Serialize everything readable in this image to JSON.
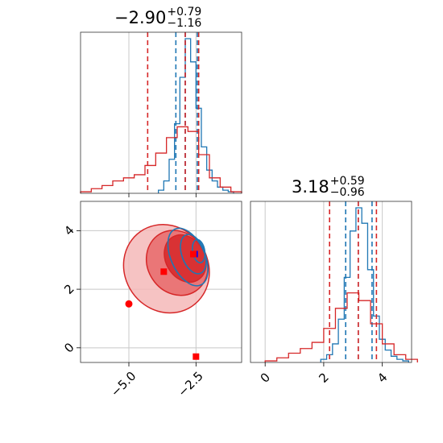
{
  "chart_data": {
    "type": "corner",
    "panels": [
      {
        "id": "marginal-1",
        "type": "histogram",
        "title": {
          "value": "−2.90",
          "plus": "+0.79",
          "minus": "−1.16"
        },
        "xlim": [
          -6.8,
          -0.8
        ],
        "grid_x": [
          -5.0,
          -2.5
        ],
        "series": [
          {
            "name": "",
            "color": "#1f77b4",
            "quantiles": [
              -3.25,
              -2.9,
              -2.45
            ],
            "x": [
              -3.8,
              -3.6,
              -3.4,
              -3.2,
              -3.0,
              -2.8,
              -2.6,
              -2.4,
              -2.2,
              -2.0,
              -1.8,
              -1.6,
              -1.4,
              -1.2
            ],
            "density": [
              0.02,
              0.08,
              0.22,
              0.45,
              0.75,
              1.0,
              0.85,
              0.55,
              0.3,
              0.15,
              0.08,
              0.04,
              0.02,
              0.01
            ]
          },
          {
            "name": "",
            "color": "#d62728",
            "quantiles": [
              -4.3,
              -2.9,
              -2.4
            ],
            "x": [
              -6.6,
              -6.2,
              -5.8,
              -5.4,
              -5.0,
              -4.6,
              -4.2,
              -3.8,
              -3.4,
              -3.0,
              -2.6,
              -2.2,
              -1.8,
              -1.4,
              -1.0
            ],
            "density": [
              0.01,
              0.03,
              0.05,
              0.08,
              0.1,
              0.12,
              0.18,
              0.26,
              0.36,
              0.43,
              0.4,
              0.25,
              0.1,
              0.04,
              0.01
            ]
          }
        ]
      },
      {
        "id": "marginal-2",
        "type": "histogram",
        "title": {
          "value": "3.18",
          "plus": "+0.59",
          "minus": "−0.96"
        },
        "xlim": [
          -0.5,
          5.0
        ],
        "grid_x": [
          0,
          2,
          4
        ],
        "xticks": [
          "0",
          "2",
          "4"
        ],
        "series": [
          {
            "name": "",
            "color": "#1f77b4",
            "quantiles": [
              2.75,
              3.18,
              3.65
            ],
            "x": [
              2.0,
              2.2,
              2.4,
              2.6,
              2.8,
              3.0,
              3.2,
              3.4,
              3.6,
              3.8,
              4.0,
              4.2,
              4.4,
              4.6,
              4.8
            ],
            "density": [
              0.02,
              0.05,
              0.12,
              0.28,
              0.55,
              0.85,
              1.0,
              0.9,
              0.6,
              0.3,
              0.15,
              0.08,
              0.04,
              0.02,
              0.01
            ]
          },
          {
            "name": "",
            "color": "#d62728",
            "quantiles": [
              2.2,
              3.18,
              3.8
            ],
            "x": [
              0.2,
              0.6,
              1.0,
              1.4,
              1.8,
              2.2,
              2.6,
              3.0,
              3.4,
              3.8,
              4.2,
              4.6,
              5.0
            ],
            "density": [
              0.01,
              0.03,
              0.06,
              0.09,
              0.13,
              0.22,
              0.35,
              0.45,
              0.4,
              0.25,
              0.12,
              0.05,
              0.02
            ]
          }
        ]
      },
      {
        "id": "joint",
        "type": "contour",
        "xlim": [
          -6.8,
          -0.8
        ],
        "ylim": [
          -0.5,
          5.0
        ],
        "grid_x": [
          -5.0,
          -2.5
        ],
        "grid_y": [
          0,
          2,
          4
        ],
        "xticks": [
          "−5.0",
          "−2.5"
        ],
        "yticks": [
          "0",
          "2",
          "4"
        ],
        "blue_contours": [
          {
            "cx": -2.8,
            "cy": 3.1,
            "rx": 1.25,
            "ry": 1.05,
            "angle": 25
          },
          {
            "cx": -2.6,
            "cy": 3.2,
            "rx": 0.85,
            "ry": 0.7,
            "angle": 20
          },
          {
            "cx": -2.4,
            "cy": 3.3,
            "rx": 0.45,
            "ry": 0.4,
            "angle": 10
          }
        ],
        "red_contours": [
          {
            "cx": -3.6,
            "cy": 2.7,
            "rx": 3.1,
            "ry": 1.55,
            "angle": 35
          },
          {
            "cx": -3.2,
            "cy": 2.9,
            "rx": 2.2,
            "ry": 1.15,
            "angle": 33
          },
          {
            "cx": -2.9,
            "cy": 3.05,
            "rx": 1.45,
            "ry": 0.85,
            "angle": 30
          }
        ],
        "markers": [
          {
            "x": -2.55,
            "y": 3.2,
            "color": "#0000ff",
            "shape": "square"
          },
          {
            "x": -2.6,
            "y": 3.2,
            "color": "#ff0000",
            "shape": "square"
          },
          {
            "x": -3.7,
            "y": 2.6,
            "color": "#ff0000",
            "shape": "square"
          },
          {
            "x": -5.0,
            "y": 1.5,
            "color": "#ff0000",
            "shape": "circle"
          },
          {
            "x": -2.5,
            "y": -0.3,
            "color": "#ff0000",
            "shape": "square"
          }
        ]
      }
    ]
  }
}
